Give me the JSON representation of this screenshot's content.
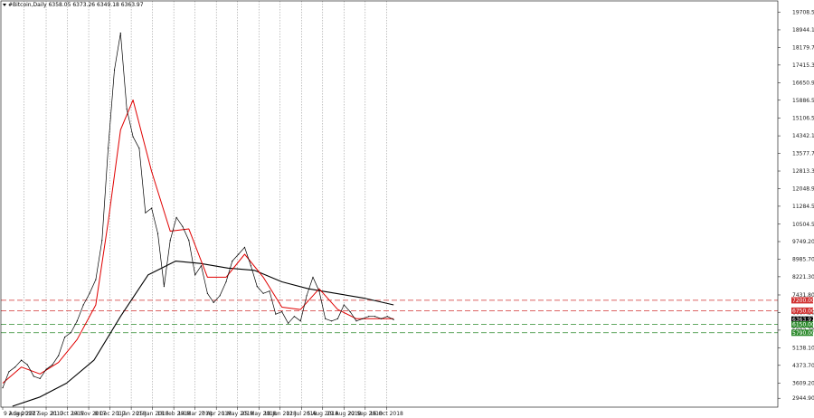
{
  "chart_data": {
    "type": "line",
    "title": "#Bitcoin,Daily  6358.05 6373.26 6349.18 6363.97",
    "xlabel": "",
    "ylabel": "",
    "ylim": [
      2560,
      20200
    ],
    "x_ticks": [
      "9 Aug 2017",
      "2 Sep 2017",
      "27 Sep 2017",
      "21 Oct 2017",
      "14 Nov 2017",
      "8 Dec 2017",
      "1 Jan 2018",
      "25 Jan 2018",
      "18 Feb 2018",
      "14 Mar 2018",
      "7 Apr 2018",
      "1 May 2018",
      "25 May 2018",
      "18 Jun 2018",
      "12 Jul 2018",
      "5 Aug 2018",
      "29 Aug 2018",
      "22 Sep 2018",
      "16 Oct 2018"
    ],
    "y_ticks": [
      2944.9,
      3609.2,
      4373.7,
      5138.1,
      5902.7,
      6667.2,
      7431.8,
      8221.3,
      8985.7,
      9749.2,
      10504.5,
      11284.5,
      12048.9,
      12813.3,
      13577.7,
      14342.1,
      15106.5,
      15886.5,
      16650.9,
      17415.3,
      18179.7,
      18944.1,
      19708.5
    ],
    "grid": {
      "vertical": true,
      "horizontal": false
    },
    "colors": {
      "price": "#000000",
      "ma_fast": "#e00000",
      "ma_slow": "#000000",
      "resistance": "#d03030",
      "support": "#2e8b2e"
    },
    "series": [
      {
        "role": "price",
        "x": [
          "2017-08-09",
          "2017-08-16",
          "2017-08-23",
          "2017-08-30",
          "2017-09-06",
          "2017-09-13",
          "2017-09-20",
          "2017-09-27",
          "2017-10-04",
          "2017-10-11",
          "2017-10-18",
          "2017-10-25",
          "2017-11-01",
          "2017-11-08",
          "2017-11-15",
          "2017-11-22",
          "2017-11-29",
          "2017-12-06",
          "2017-12-13",
          "2017-12-20",
          "2017-12-27",
          "2018-01-03",
          "2018-01-10",
          "2018-01-17",
          "2018-01-24",
          "2018-01-31",
          "2018-02-07",
          "2018-02-14",
          "2018-02-21",
          "2018-02-28",
          "2018-03-07",
          "2018-03-14",
          "2018-03-21",
          "2018-03-28",
          "2018-04-04",
          "2018-04-11",
          "2018-04-18",
          "2018-04-25",
          "2018-05-02",
          "2018-05-09",
          "2018-05-16",
          "2018-05-23",
          "2018-05-30",
          "2018-06-06",
          "2018-06-13",
          "2018-06-20",
          "2018-06-27",
          "2018-07-04",
          "2018-07-11",
          "2018-07-18",
          "2018-07-25",
          "2018-08-01",
          "2018-08-08",
          "2018-08-15",
          "2018-08-22",
          "2018-08-29",
          "2018-09-05",
          "2018-09-12",
          "2018-09-19",
          "2018-09-26",
          "2018-10-03",
          "2018-10-10",
          "2018-10-17",
          "2018-10-24"
        ],
        "values": [
          3400,
          4100,
          4300,
          4600,
          4400,
          3900,
          3800,
          4200,
          4400,
          4800,
          5600,
          5800,
          6300,
          7000,
          7500,
          8100,
          9800,
          13800,
          17200,
          18800,
          15500,
          14300,
          13800,
          11000,
          11200,
          10100,
          7800,
          9800,
          10800,
          10400,
          9800,
          8300,
          8700,
          7500,
          7100,
          7400,
          8000,
          8900,
          9200,
          9500,
          8700,
          7800,
          7500,
          7600,
          6600,
          6700,
          6200,
          6500,
          6300,
          7400,
          8200,
          7600,
          6400,
          6300,
          6400,
          7000,
          6700,
          6300,
          6400,
          6500,
          6500,
          6400,
          6500,
          6360
        ]
      },
      {
        "role": "ma_fast",
        "x": [
          "2017-08-09",
          "2017-08-30",
          "2017-09-20",
          "2017-10-11",
          "2017-11-01",
          "2017-11-22",
          "2017-12-06",
          "2017-12-20",
          "2018-01-03",
          "2018-01-24",
          "2018-02-14",
          "2018-03-07",
          "2018-03-28",
          "2018-04-18",
          "2018-05-09",
          "2018-05-30",
          "2018-06-20",
          "2018-07-11",
          "2018-08-01",
          "2018-08-22",
          "2018-09-12",
          "2018-10-03",
          "2018-10-24"
        ],
        "values": [
          3600,
          4300,
          4000,
          4500,
          5500,
          7000,
          10600,
          14600,
          15900,
          12800,
          10200,
          10300,
          8200,
          8200,
          9200,
          8200,
          6900,
          6800,
          7700,
          6800,
          6400,
          6400,
          6400
        ]
      },
      {
        "role": "ma_slow",
        "x": [
          "2017-08-20",
          "2017-09-20",
          "2017-10-20",
          "2017-11-20",
          "2017-12-20",
          "2018-01-20",
          "2018-02-20",
          "2018-03-20",
          "2018-04-20",
          "2018-05-20",
          "2018-06-20",
          "2018-07-20",
          "2018-08-20",
          "2018-09-20",
          "2018-10-24"
        ],
        "values": [
          2600,
          3000,
          3600,
          4600,
          6500,
          8300,
          8900,
          8800,
          8600,
          8500,
          8000,
          7700,
          7500,
          7300,
          7000
        ]
      }
    ],
    "levels": [
      {
        "type": "resistance",
        "value": 7200
      },
      {
        "type": "resistance",
        "value": 6750
      },
      {
        "type": "support",
        "value": 6150
      },
      {
        "type": "support",
        "value": 5790
      }
    ],
    "price_tags": [
      {
        "label": "7200.00",
        "value": 7200,
        "color": "#d03030"
      },
      {
        "label": "6750.00",
        "value": 6750,
        "color": "#d03030"
      },
      {
        "label": "6363.97",
        "value": 6363.97,
        "color": "#000000"
      },
      {
        "label": "6150.00",
        "value": 6150,
        "color": "#2e8b2e"
      },
      {
        "label": "5790.00",
        "value": 5790,
        "color": "#2e8b2e"
      }
    ]
  }
}
